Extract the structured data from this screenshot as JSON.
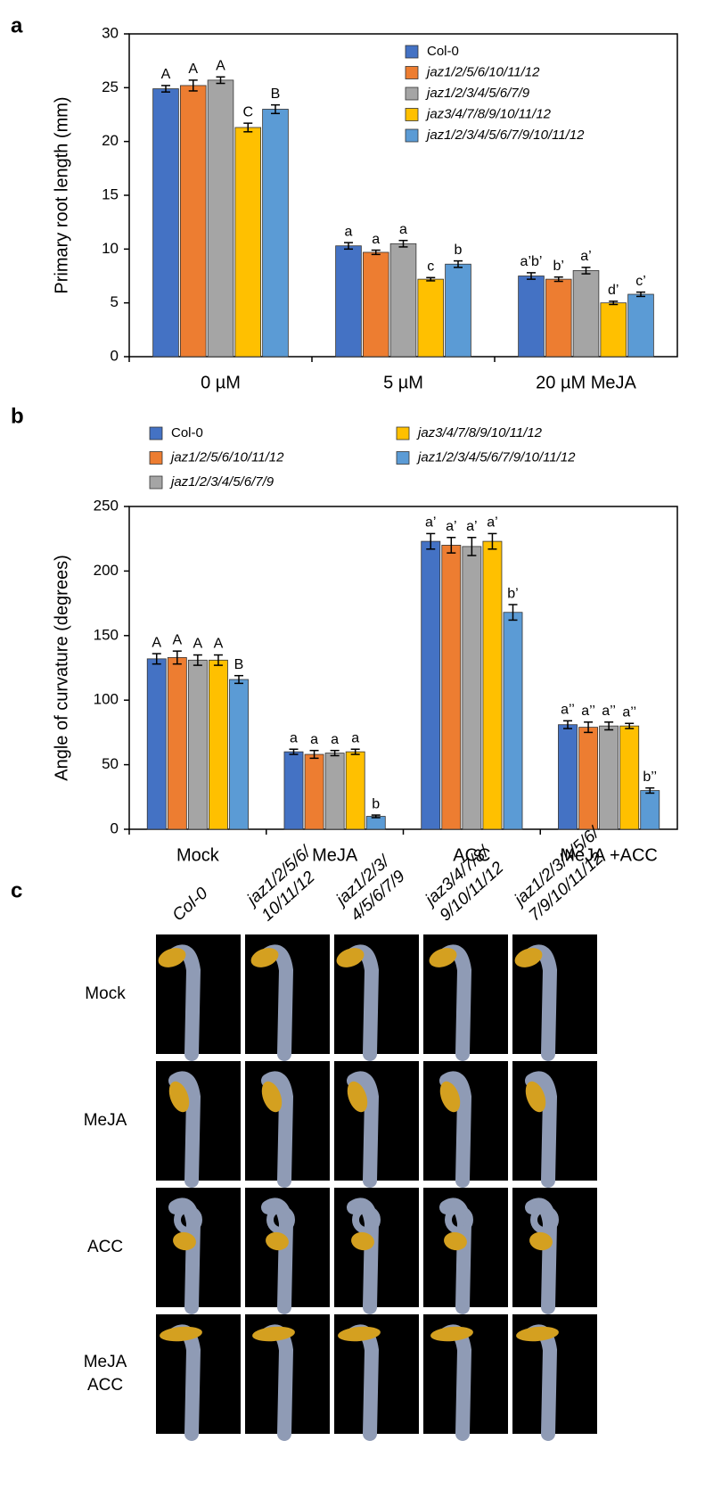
{
  "panel_labels": [
    "a",
    "b",
    "c"
  ],
  "chart_data": [
    {
      "type": "bar",
      "y_label": "Primary root length (mm)",
      "categories": [
        "0 µM",
        "5 µM",
        "20 µM MeJA"
      ],
      "ylim": [
        0,
        30
      ],
      "yticks": [
        0,
        5,
        10,
        15,
        20,
        25,
        30
      ],
      "legend": "upper right",
      "series": [
        {
          "name": "Col-0",
          "color": "#4472c4",
          "values": [
            24.9,
            10.3,
            7.5
          ],
          "errors": [
            0.3,
            0.3,
            0.3
          ],
          "letters": [
            "A",
            "a",
            "a’b’"
          ]
        },
        {
          "name": "jaz1/2/5/6/10/11/12",
          "color": "#ed7d31",
          "values": [
            25.2,
            9.7,
            7.2
          ],
          "errors": [
            0.5,
            0.2,
            0.2
          ],
          "letters": [
            "A",
            "a",
            "b’"
          ]
        },
        {
          "name": "jaz1/2/3/4/5/6/7/9",
          "color": "#a5a5a5",
          "values": [
            25.7,
            10.5,
            8.0
          ],
          "errors": [
            0.3,
            0.3,
            0.3
          ],
          "letters": [
            "A",
            "a",
            "a’"
          ]
        },
        {
          "name": "jaz3/4/7/8/9/10/11/12",
          "color": "#ffc000",
          "values": [
            21.3,
            7.2,
            5.0
          ],
          "errors": [
            0.4,
            0.15,
            0.15
          ],
          "letters": [
            "C",
            "c",
            "d’"
          ]
        },
        {
          "name": "jaz1/2/3/4/5/6/7/9/10/11/12",
          "color": "#5b9bd5",
          "values": [
            23.0,
            8.6,
            5.8
          ],
          "errors": [
            0.4,
            0.3,
            0.2
          ],
          "letters": [
            "B",
            "b",
            "c’"
          ]
        }
      ]
    },
    {
      "type": "bar",
      "y_label": "Angle of curvature (degrees)",
      "categories": [
        "Mock",
        "MeJA",
        "ACC",
        "MeJA +ACC"
      ],
      "ylim": [
        0,
        250
      ],
      "yticks": [
        0,
        50,
        100,
        150,
        200,
        250
      ],
      "legend": "top",
      "series": [
        {
          "name": "Col-0",
          "color": "#4472c4",
          "values": [
            132,
            60,
            223,
            81
          ],
          "errors": [
            4,
            2,
            6,
            3
          ],
          "letters": [
            "A",
            "a",
            "a’",
            "a’’"
          ]
        },
        {
          "name": "jaz1/2/5/6/10/11/12",
          "color": "#ed7d31",
          "values": [
            133,
            58,
            220,
            79
          ],
          "errors": [
            5,
            3,
            6,
            4
          ],
          "letters": [
            "A",
            "a",
            "a’",
            "a’’"
          ]
        },
        {
          "name": "jaz1/2/3/4/5/6/7/9",
          "color": "#a5a5a5",
          "values": [
            131,
            59,
            219,
            80
          ],
          "errors": [
            4,
            2,
            7,
            3
          ],
          "letters": [
            "A",
            "a",
            "a’",
            "a’’"
          ]
        },
        {
          "name": "jaz3/4/7/8/9/10/11/12",
          "color": "#ffc000",
          "values": [
            131,
            60,
            223,
            80
          ],
          "errors": [
            4,
            2,
            6,
            2
          ],
          "letters": [
            "A",
            "a",
            "a’",
            "a’’"
          ]
        },
        {
          "name": "jaz1/2/3/4/5/6/7/9/10/11/12",
          "color": "#5b9bd5",
          "values": [
            116,
            10,
            168,
            30
          ],
          "errors": [
            3,
            1,
            6,
            2
          ],
          "letters": [
            "B",
            "b",
            "b’",
            "b’’"
          ]
        }
      ]
    }
  ],
  "panel_c": {
    "columns": [
      [
        "Col-0"
      ],
      [
        "jaz1/2/5/6/",
        "10/11/12"
      ],
      [
        "jaz1/2/3/",
        "4/5/6/7/9"
      ],
      [
        "jaz3/4/7/8/",
        "9/10/11/12"
      ],
      [
        "jaz1/2/3/4/5/6/",
        "7/9/10/11/12"
      ]
    ],
    "rows": [
      [
        "Mock"
      ],
      [
        "MeJA"
      ],
      [
        "ACC"
      ],
      [
        "MeJA",
        "ACC"
      ]
    ]
  }
}
